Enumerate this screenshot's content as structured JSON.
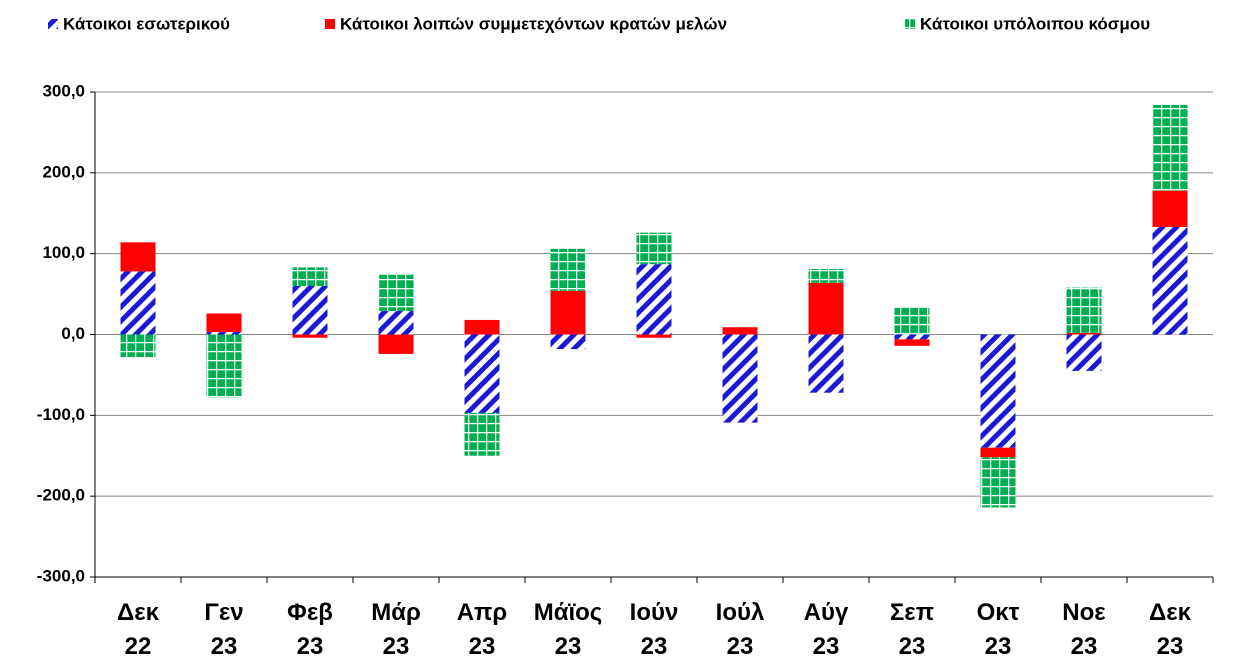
{
  "chart_data": {
    "type": "stacked_bar",
    "categories": [
      "Δεκ\n22",
      "Γεν\n23",
      "Φεβ\n23",
      "Μάρ\n23",
      "Απρ\n23",
      "Μάϊος\n23",
      "Ιούν\n23",
      "Ιούλ\n23",
      "Αύγ\n23",
      "Σεπ\n23",
      "Οκτ\n23",
      "Νοε\n23",
      "Δεκ\n23"
    ],
    "series": [
      {
        "name": "Κάτοικοι εσωτερικού",
        "color": "#1a1ad6",
        "pattern": "diagonal",
        "values": [
          78,
          3,
          60,
          29,
          -97,
          -18,
          87,
          -109,
          -72,
          -6,
          -140,
          -45,
          133
        ]
      },
      {
        "name": "Κάτοικοι λοιπών συμμετεχόντων κρατών μελών",
        "color": "#ff0000",
        "pattern": "solid",
        "values": [
          36,
          23,
          -4,
          -24,
          18,
          54,
          -4,
          9,
          64,
          -8,
          -12,
          2,
          45
        ]
      },
      {
        "name": "Κάτοικοι υπόλοιπου κόσμου",
        "color": "#00b050",
        "pattern": "grid",
        "values": [
          -28,
          -78,
          23,
          45,
          -53,
          52,
          39,
          0,
          17,
          33,
          -62,
          56,
          106
        ]
      }
    ],
    "ylim": [
      -300,
      300
    ],
    "yticks": [
      {
        "value": -300,
        "label": "-300,0"
      },
      {
        "value": -200,
        "label": "-200,0"
      },
      {
        "value": -100,
        "label": "-100,0"
      },
      {
        "value": 0,
        "label": "0,0"
      },
      {
        "value": 100,
        "label": "100,0"
      },
      {
        "value": 200,
        "label": "200,0"
      },
      {
        "value": 300,
        "label": "300,0"
      }
    ],
    "grid": true,
    "legend": "top"
  }
}
